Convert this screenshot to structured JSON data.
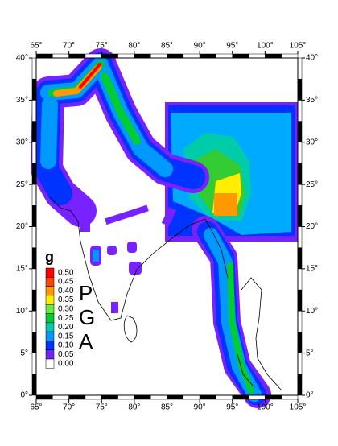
{
  "map": {
    "lonlim": [
      65,
      105
    ],
    "latlim": [
      0,
      40
    ],
    "lon_ticks": [
      {
        "value": 65,
        "label": "65°"
      },
      {
        "value": 70,
        "label": "70°"
      },
      {
        "value": 75,
        "label": "75°"
      },
      {
        "value": 80,
        "label": "80°"
      },
      {
        "value": 85,
        "label": "85°"
      },
      {
        "value": 90,
        "label": "90°"
      },
      {
        "value": 95,
        "label": "95°"
      },
      {
        "value": 100,
        "label": "100°"
      },
      {
        "value": 105,
        "label": "105°"
      }
    ],
    "lat_ticks": [
      {
        "value": 0,
        "label": "0°"
      },
      {
        "value": 5,
        "label": "5°"
      },
      {
        "value": 10,
        "label": "10°"
      },
      {
        "value": 15,
        "label": "15°"
      },
      {
        "value": 20,
        "label": "20°"
      },
      {
        "value": 25,
        "label": "25°"
      },
      {
        "value": 30,
        "label": "30°"
      },
      {
        "value": 35,
        "label": "35°"
      },
      {
        "value": 40,
        "label": "40°"
      }
    ],
    "legend": {
      "title": "g",
      "items": [
        {
          "label": "0.50",
          "color": "#ff0000"
        },
        {
          "label": "0.45",
          "color": "#ff4400"
        },
        {
          "label": "0.40",
          "color": "#ff9900"
        },
        {
          "label": "0.35",
          "color": "#ffee00"
        },
        {
          "label": "0.30",
          "color": "#66ee33"
        },
        {
          "label": "0.25",
          "color": "#00cc33"
        },
        {
          "label": "0.20",
          "color": "#00ccaa"
        },
        {
          "label": "0.15",
          "color": "#0099ff"
        },
        {
          "label": "0.10",
          "color": "#0033ff"
        },
        {
          "label": "0.05",
          "color": "#7722ff"
        },
        {
          "label": "0.00",
          "color": "#ffffff"
        }
      ]
    },
    "letters": [
      "P",
      "G",
      "A"
    ]
  }
}
